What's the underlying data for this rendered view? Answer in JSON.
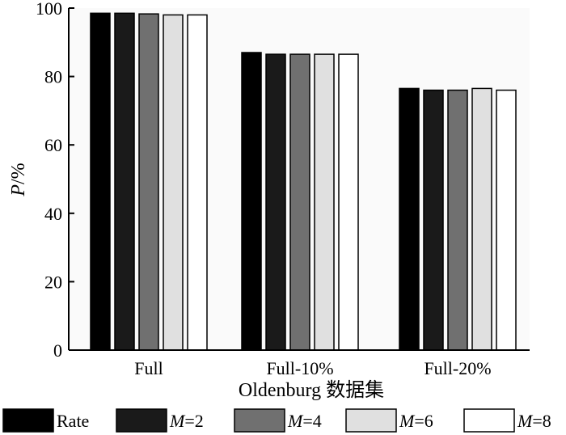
{
  "chart_data": {
    "type": "bar",
    "categories": [
      "Full",
      "Full-10%",
      "Full-20%"
    ],
    "series": [
      {
        "name": "Rate",
        "values": [
          98.5,
          87.0,
          76.5
        ],
        "color": "#000000"
      },
      {
        "name": "M=2",
        "values": [
          98.5,
          86.5,
          76.0
        ],
        "color": "#1a1a1a"
      },
      {
        "name": "M=4",
        "values": [
          98.3,
          86.5,
          76.0
        ],
        "color": "#707070"
      },
      {
        "name": "M=6",
        "values": [
          98.0,
          86.5,
          76.5
        ],
        "color": "#e0e0e0"
      },
      {
        "name": "M=8",
        "values": [
          98.0,
          86.5,
          76.0
        ],
        "color": "#ffffff"
      }
    ],
    "legend_prefix": [
      "",
      "M",
      "M",
      "M",
      "M"
    ],
    "legend_suffix": [
      "Rate",
      "=2",
      "=4",
      "=6",
      "=8"
    ],
    "xlabel": "Oldenburg 数据集",
    "ylabel_italic": "P",
    "ylabel_rest": "/%",
    "ylim": [
      0,
      100
    ],
    "yticks": [
      0,
      20,
      40,
      60,
      80,
      100
    ],
    "grid": false,
    "legend_position": "bottom"
  }
}
